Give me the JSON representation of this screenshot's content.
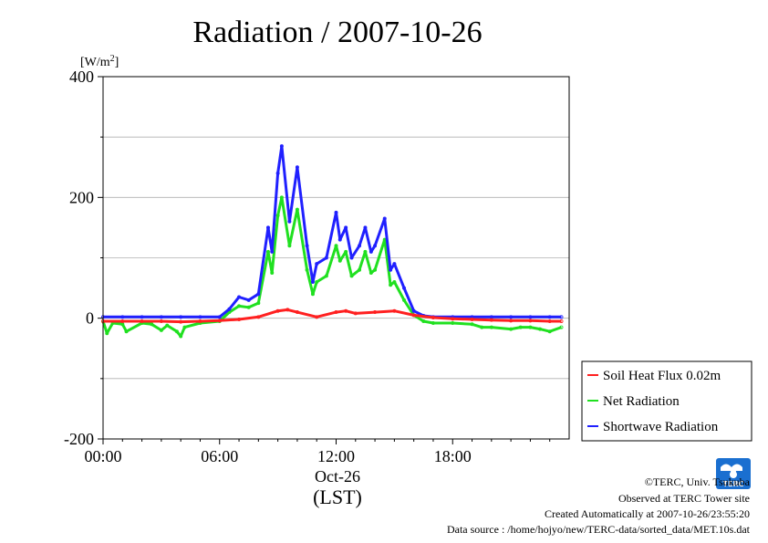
{
  "chart_data": {
    "type": "line",
    "title": "Radiation / 2007-10-26",
    "ylabel_unit": "[W/m",
    "ylabel_unit_sup": "2",
    "ylabel_unit_close": "]",
    "ylim": [
      -200,
      400
    ],
    "yticks": [
      {
        "value": 400,
        "label": "400"
      },
      {
        "value": 200,
        "label": "200"
      },
      {
        "value": 0,
        "label": "0"
      },
      {
        "value": -200,
        "label": "-200"
      }
    ],
    "xlim": [
      0,
      24
    ],
    "xticks": [
      {
        "value": 0,
        "label": "00:00"
      },
      {
        "value": 6,
        "label": "06:00"
      },
      {
        "value": 12,
        "label": "12:00"
      },
      {
        "value": 18,
        "label": "18:00"
      }
    ],
    "xlabel_date": "Oct-26",
    "xlabel_tz": "(LST)",
    "grid": true,
    "legend_position": "right",
    "series": [
      {
        "name": "Soil Heat Flux 0.02m",
        "color": "#ff2020",
        "x": [
          0,
          1,
          2,
          3,
          4,
          5,
          6,
          7,
          8,
          9,
          9.5,
          10,
          11,
          12,
          12.5,
          13,
          14,
          15,
          16,
          17,
          18,
          19,
          20,
          21,
          22,
          23,
          23.6
        ],
        "y": [
          -5,
          -5,
          -5,
          -5,
          -6,
          -5,
          -4,
          -2,
          2,
          12,
          14,
          10,
          2,
          10,
          12,
          8,
          10,
          12,
          5,
          1,
          -1,
          -2,
          -3,
          -4,
          -4,
          -5,
          -5
        ]
      },
      {
        "name": "Net Radiation",
        "color": "#20e020",
        "x": [
          0,
          0.2,
          0.5,
          1,
          1.2,
          2,
          2.5,
          3,
          3.3,
          3.8,
          4,
          4.2,
          5,
          6,
          6.5,
          7,
          7.5,
          8,
          8.5,
          8.7,
          9,
          9.2,
          9.6,
          10,
          10.5,
          10.8,
          11,
          11.5,
          12,
          12.2,
          12.5,
          12.8,
          13.2,
          13.5,
          13.8,
          14,
          14.5,
          14.8,
          15,
          15.5,
          16,
          16.5,
          17,
          18,
          19,
          19.5,
          20,
          21,
          21.5,
          22,
          22.5,
          23,
          23.6
        ],
        "y": [
          -5,
          -25,
          -8,
          -10,
          -22,
          -8,
          -10,
          -20,
          -12,
          -22,
          -30,
          -15,
          -8,
          -5,
          10,
          20,
          18,
          25,
          110,
          75,
          170,
          200,
          120,
          180,
          80,
          40,
          60,
          70,
          120,
          95,
          110,
          70,
          80,
          110,
          75,
          80,
          130,
          55,
          60,
          30,
          5,
          -5,
          -8,
          -8,
          -10,
          -15,
          -15,
          -18,
          -15,
          -15,
          -18,
          -22,
          -15
        ]
      },
      {
        "name": "Shortwave Radiation",
        "color": "#2020ff",
        "x": [
          0,
          1,
          2,
          3,
          4,
          5,
          6,
          6.5,
          7,
          7.5,
          8,
          8.5,
          8.7,
          9,
          9.2,
          9.6,
          10,
          10.5,
          10.8,
          11,
          11.5,
          12,
          12.2,
          12.5,
          12.8,
          13.2,
          13.5,
          13.8,
          14,
          14.5,
          14.8,
          15,
          15.5,
          16,
          16.5,
          17,
          18,
          19,
          20,
          21,
          22,
          23,
          23.6
        ],
        "y": [
          2,
          2,
          2,
          2,
          2,
          2,
          2,
          15,
          35,
          30,
          40,
          150,
          110,
          240,
          285,
          160,
          250,
          120,
          60,
          90,
          100,
          175,
          130,
          150,
          100,
          120,
          150,
          110,
          120,
          165,
          80,
          90,
          50,
          12,
          4,
          2,
          2,
          2,
          2,
          2,
          2,
          2,
          2
        ]
      }
    ]
  },
  "footer": {
    "copyright": "©TERC, Univ. Tsukuba",
    "observed": "Observed at TERC Tower site",
    "created": "Created Automatically at 2007-10-26/23:55:20",
    "source": "Data source : /home/hojyo/new/TERC-data/sorted_data/MET.10s.dat"
  },
  "logo": {
    "text": "TERC",
    "color": "#1a6fd0"
  }
}
